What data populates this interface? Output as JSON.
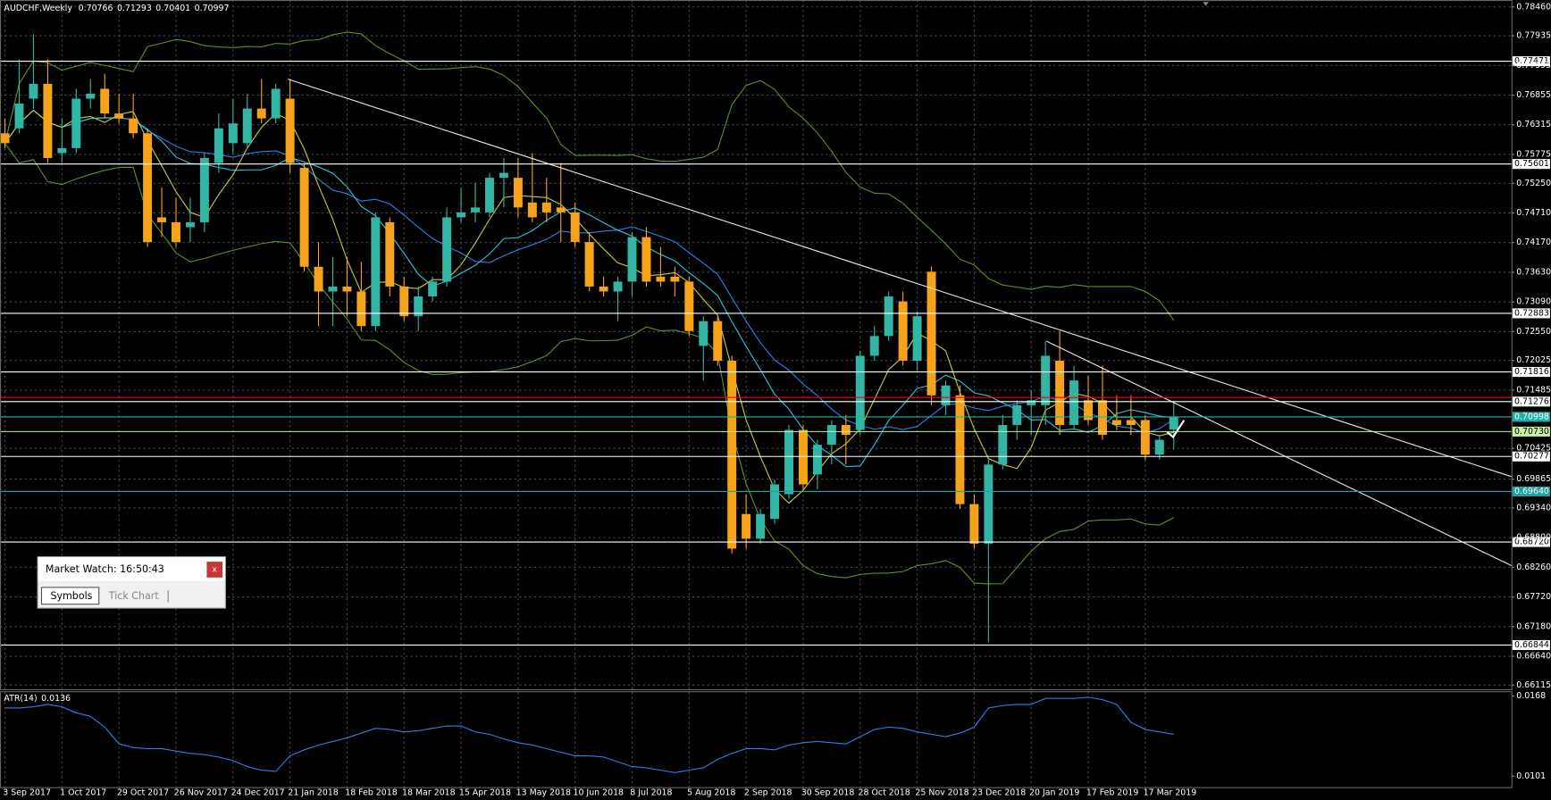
{
  "chart_data": {
    "type": "candlestick",
    "title": "AUDCHF,Weekly",
    "categories": [
      "3 Sep 2017",
      null,
      null,
      null,
      "1 Oct 2017",
      null,
      null,
      null,
      "29 Oct 2017",
      null,
      null,
      null,
      "26 Nov 2017",
      null,
      null,
      null,
      "24 Dec 2017",
      null,
      null,
      null,
      "21 Jan 2018",
      null,
      null,
      null,
      "18 Feb 2018",
      null,
      null,
      null,
      "18 Mar 2018",
      null,
      null,
      null,
      "15 Apr 2018",
      null,
      null,
      null,
      "13 May 2018",
      null,
      null,
      null,
      "10 Jun 2018",
      null,
      null,
      null,
      "8 Jul 2018",
      null,
      null,
      null,
      "5 Aug 2018",
      null,
      null,
      null,
      "2 Sep 2018",
      null,
      null,
      null,
      "30 Sep 2018",
      null,
      null,
      null,
      "28 Oct 2018",
      null,
      null,
      null,
      "25 Nov 2018",
      null,
      null,
      null,
      "23 Dec 2018",
      null,
      null,
      null,
      "20 Jan 2019",
      null,
      null,
      null,
      "17 Feb 2019",
      null,
      null,
      null,
      "17 Mar 2019",
      null,
      null
    ],
    "values": [
      [
        0.7616,
        0.7643,
        0.7589,
        0.7598
      ],
      [
        0.7625,
        0.7751,
        0.7616,
        0.767
      ],
      [
        0.7679,
        0.7796,
        0.7661,
        0.7706
      ],
      [
        0.7706,
        0.7751,
        0.7562,
        0.7571
      ],
      [
        0.758,
        0.7643,
        0.7562,
        0.7589
      ],
      [
        0.7589,
        0.7697,
        0.758,
        0.7679
      ],
      [
        0.7679,
        0.7715,
        0.7661,
        0.7688
      ],
      [
        0.7697,
        0.7724,
        0.7643,
        0.7652
      ],
      [
        0.7652,
        0.7688,
        0.7634,
        0.7643
      ],
      [
        0.7643,
        0.7688,
        0.7607,
        0.7616
      ],
      [
        0.7616,
        0.7625,
        0.7409,
        0.7418
      ],
      [
        0.7463,
        0.7517,
        0.7427,
        0.7454
      ],
      [
        0.7454,
        0.7499,
        0.7409,
        0.7418
      ],
      [
        0.7445,
        0.7499,
        0.7418,
        0.7454
      ],
      [
        0.7454,
        0.758,
        0.7436,
        0.7571
      ],
      [
        0.7562,
        0.7652,
        0.7544,
        0.7625
      ],
      [
        0.7598,
        0.7679,
        0.758,
        0.7634
      ],
      [
        0.7598,
        0.7688,
        0.7589,
        0.7661
      ],
      [
        0.7661,
        0.7715,
        0.7634,
        0.7643
      ],
      [
        0.7643,
        0.7706,
        0.7634,
        0.7697
      ],
      [
        0.7679,
        0.7715,
        0.7544,
        0.7562
      ],
      [
        0.7553,
        0.7562,
        0.7364,
        0.7373
      ],
      [
        0.7373,
        0.7418,
        0.7265,
        0.7328
      ],
      [
        0.7328,
        0.7391,
        0.7265,
        0.7337
      ],
      [
        0.7337,
        0.7391,
        0.7283,
        0.7328
      ],
      [
        0.7328,
        0.7382,
        0.7256,
        0.7265
      ],
      [
        0.7265,
        0.7472,
        0.7256,
        0.7463
      ],
      [
        0.7454,
        0.7463,
        0.7319,
        0.7337
      ],
      [
        0.7337,
        0.7355,
        0.7274,
        0.7283
      ],
      [
        0.7283,
        0.7337,
        0.7256,
        0.7319
      ],
      [
        0.7319,
        0.7355,
        0.731,
        0.7346
      ],
      [
        0.7346,
        0.7481,
        0.7337,
        0.7463
      ],
      [
        0.7463,
        0.7517,
        0.7454,
        0.7472
      ],
      [
        0.7472,
        0.7526,
        0.7454,
        0.7481
      ],
      [
        0.7472,
        0.7544,
        0.7463,
        0.7535
      ],
      [
        0.7535,
        0.7571,
        0.7481,
        0.7544
      ],
      [
        0.7535,
        0.7571,
        0.7463,
        0.7481
      ],
      [
        0.749,
        0.758,
        0.7454,
        0.7463
      ],
      [
        0.749,
        0.7535,
        0.7454,
        0.7472
      ],
      [
        0.7481,
        0.7562,
        0.7418,
        0.7472
      ],
      [
        0.7472,
        0.749,
        0.7409,
        0.7418
      ],
      [
        0.7418,
        0.7436,
        0.7328,
        0.7337
      ],
      [
        0.7337,
        0.7355,
        0.7319,
        0.7328
      ],
      [
        0.7328,
        0.7355,
        0.7274,
        0.7346
      ],
      [
        0.7346,
        0.7436,
        0.7319,
        0.7427
      ],
      [
        0.7427,
        0.7445,
        0.7337,
        0.7346
      ],
      [
        0.7355,
        0.7409,
        0.7337,
        0.7346
      ],
      [
        0.7355,
        0.7373,
        0.7319,
        0.7346
      ],
      [
        0.7346,
        0.7355,
        0.7247,
        0.7256
      ],
      [
        0.7229,
        0.7283,
        0.7166,
        0.7274
      ],
      [
        0.7274,
        0.7283,
        0.7193,
        0.7202
      ],
      [
        0.7202,
        0.7211,
        0.6851,
        0.686
      ],
      [
        0.6923,
        0.6959,
        0.686,
        0.6878
      ],
      [
        0.6878,
        0.6932,
        0.6869,
        0.6923
      ],
      [
        0.6914,
        0.6986,
        0.6905,
        0.6977
      ],
      [
        0.6959,
        0.7085,
        0.695,
        0.7076
      ],
      [
        0.7076,
        0.7085,
        0.6968,
        0.6977
      ],
      [
        0.6995,
        0.7058,
        0.6968,
        0.7049
      ],
      [
        0.7049,
        0.7094,
        0.7013,
        0.7085
      ],
      [
        0.7085,
        0.7103,
        0.7013,
        0.7067
      ],
      [
        0.7076,
        0.722,
        0.7067,
        0.7211
      ],
      [
        0.7211,
        0.7265,
        0.7202,
        0.7247
      ],
      [
        0.7247,
        0.7328,
        0.7238,
        0.7319
      ],
      [
        0.731,
        0.7328,
        0.7193,
        0.7202
      ],
      [
        0.7202,
        0.7292,
        0.7184,
        0.7283
      ],
      [
        0.7364,
        0.7373,
        0.7121,
        0.7139
      ],
      [
        0.7121,
        0.7166,
        0.7103,
        0.7157
      ],
      [
        0.7139,
        0.7157,
        0.6932,
        0.6941
      ],
      [
        0.6941,
        0.6959,
        0.686,
        0.6869
      ],
      [
        0.6869,
        0.7022,
        0.6689,
        0.7013
      ],
      [
        0.7013,
        0.7103,
        0.7004,
        0.7085
      ],
      [
        0.7085,
        0.713,
        0.7058,
        0.7121
      ],
      [
        0.7121,
        0.7148,
        0.7067,
        0.713
      ],
      [
        0.7121,
        0.7238,
        0.7085,
        0.7211
      ],
      [
        0.7202,
        0.7256,
        0.7067,
        0.7085
      ],
      [
        0.7085,
        0.7193,
        0.7076,
        0.7166
      ],
      [
        0.713,
        0.7175,
        0.7085,
        0.7094
      ],
      [
        0.713,
        0.7193,
        0.7058,
        0.7067
      ],
      [
        0.7094,
        0.7139,
        0.7076,
        0.7085
      ],
      [
        0.7094,
        0.7139,
        0.7067,
        0.7085
      ],
      [
        0.7094,
        0.7103,
        0.7022,
        0.7031
      ],
      [
        0.7031,
        0.7067,
        0.7022,
        0.7058
      ],
      [
        0.70766,
        0.71293,
        0.70401,
        0.70997
      ]
    ],
    "up_color": "#33b5a5",
    "down_color": "#f5a31a",
    "ylim": [
      0.6604,
      0.78586
    ],
    "yticks": [
      {
        "value": 0.7846,
        "label": "0.78460"
      },
      0.77935,
      0.77395,
      0.76855,
      0.76315,
      {
        "value": 0.75775,
        "label": "0.75775"
      },
      {
        "value": 0.7525,
        "label": "0.75250"
      },
      {
        "value": 0.7471,
        "label": "0.74710"
      },
      {
        "value": 0.7417,
        "label": "0.74170"
      },
      {
        "value": 0.7363,
        "label": "0.73630"
      },
      {
        "value": 0.7309,
        "label": "0.73090"
      },
      {
        "value": 0.7255,
        "label": "0.72550"
      },
      0.72025,
      0.71485,
      0.70425,
      0.69865,
      {
        "value": 0.6934,
        "label": "0.69340"
      },
      {
        "value": 0.688,
        "label": "0.68800"
      },
      {
        "value": 0.6826,
        "label": "0.68260"
      },
      {
        "value": 0.6772,
        "label": "0.67720"
      },
      {
        "value": 0.6718,
        "label": "0.67180"
      },
      {
        "value": 0.6664,
        "label": "0.66640"
      },
      0.66115
    ],
    "grid": true,
    "levels": [
      {
        "value": 0.77471,
        "color": "#ffffff"
      },
      {
        "value": 0.75601,
        "color": "#ffffff"
      },
      {
        "value": 0.72883,
        "color": "#ffffff"
      },
      {
        "value": 0.71816,
        "color": "#ffffff"
      },
      {
        "value": 0.7135,
        "color": "#ff0000"
      },
      {
        "value": 0.71276,
        "color": "#ffffff"
      },
      {
        "value": 0.70998,
        "color": "#20b2aa"
      },
      {
        "value": {
          "value": 0.7073,
          "label": "0.70730"
        },
        "color": "#c6f2a2"
      },
      {
        "value": 0.70277,
        "color": "#ffffff"
      },
      {
        "value": {
          "value": 0.6964,
          "label": "0.69640"
        },
        "color": "#1aa3a3"
      },
      {
        "value": {
          "value": 0.6872,
          "label": "0.68720"
        },
        "color": "#ffffff"
      },
      {
        "value": 0.66844,
        "color": "#ffffff"
      }
    ],
    "indicator": {
      "type": "line",
      "name": "ATR(14)",
      "color": "#2f7fe8",
      "values": [
        0.0158,
        0.0158,
        0.0159,
        0.0161,
        0.0159,
        0.0154,
        0.0151,
        0.0142,
        0.0128,
        0.0125,
        0.0124,
        0.0124,
        0.0122,
        0.012,
        0.0119,
        0.0117,
        0.0114,
        0.0109,
        0.0106,
        0.0105,
        0.0118,
        0.0123,
        0.0127,
        0.013,
        0.0133,
        0.0137,
        0.0141,
        0.014,
        0.0138,
        0.0139,
        0.0141,
        0.0143,
        0.0143,
        0.0138,
        0.0136,
        0.0132,
        0.0129,
        0.0127,
        0.0124,
        0.0121,
        0.0118,
        0.0118,
        0.0117,
        0.0113,
        0.0109,
        0.0108,
        0.0106,
        0.0104,
        0.0106,
        0.0108,
        0.0115,
        0.012,
        0.0124,
        0.0124,
        0.0123,
        0.0127,
        0.0129,
        0.013,
        0.0129,
        0.0128,
        0.0134,
        0.014,
        0.0142,
        0.0141,
        0.0138,
        0.0136,
        0.0134,
        0.0137,
        0.0142,
        0.0158,
        0.016,
        0.0161,
        0.0161,
        0.0166,
        0.0166,
        0.0166,
        0.0167,
        0.0165,
        0.0161,
        0.0146,
        0.014,
        0.0138,
        0.0136
      ],
      "ylim": [
        0.0091,
        0.0172
      ],
      "yticks": [
        0.0168,
        0.0101
      ]
    }
  },
  "market_watch": {
    "title": "Market Watch: 16:50:43",
    "close": "x",
    "tabs": [
      "Symbols",
      "Tick Chart"
    ]
  }
}
